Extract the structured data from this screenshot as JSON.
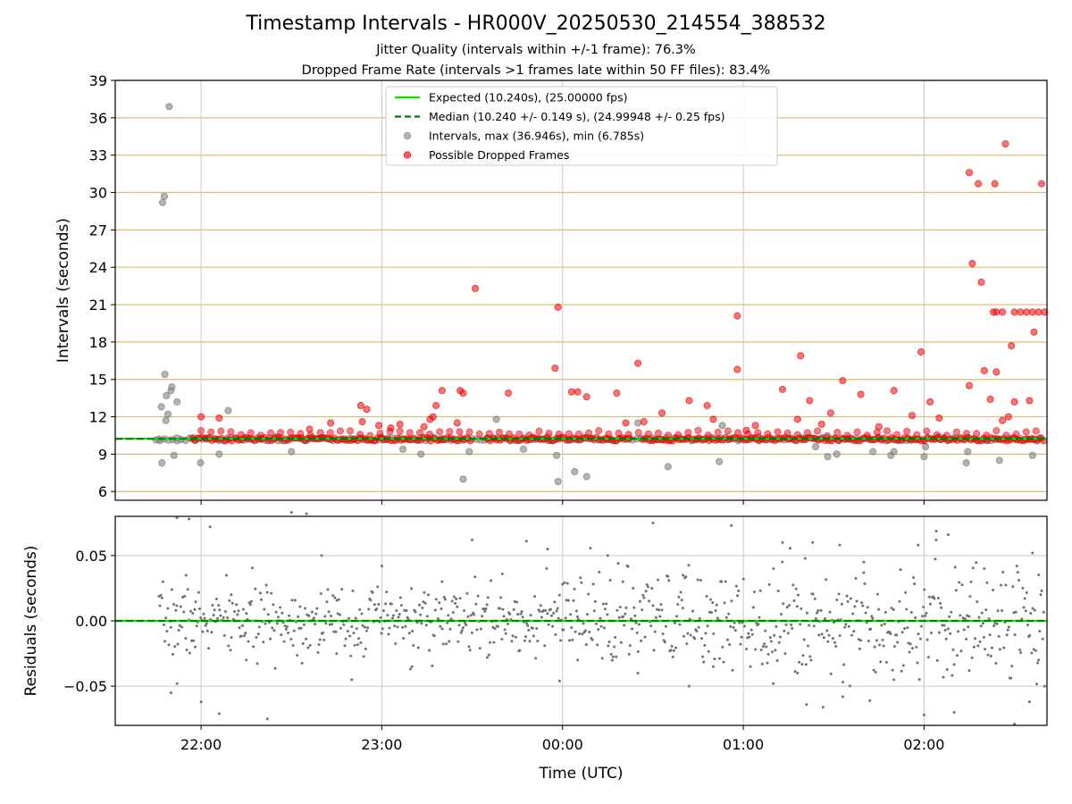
{
  "chart_data": [
    {
      "type": "scatter",
      "title": "Timestamp Intervals - HR000V_20250530_214554_388532",
      "subtitle_lines": [
        "Jitter Quality (intervals within +/-1 frame): 76.3%",
        "Dropped Frame Rate (intervals >1 frames late within 50 FF files): 83.4%"
      ],
      "xlabel": "",
      "ylabel": "Intervals (seconds)",
      "x_unit": "minutes since 21:00 UTC",
      "xlim": [
        31.5,
        340.8
      ],
      "ylim": [
        5.3,
        39
      ],
      "yticks": [
        6,
        9,
        12,
        15,
        18,
        21,
        24,
        27,
        30,
        33,
        36,
        39
      ],
      "ytick_labels": [
        "6",
        "9",
        "12",
        "15",
        "18",
        "21",
        "24",
        "27",
        "30",
        "33",
        "36",
        "39"
      ],
      "xticks": [
        60,
        120,
        180,
        240,
        300
      ],
      "grid": {
        "x": true,
        "y": true,
        "y_grid_color": "#d8bf6a",
        "x_grid_color": "#c8c8c8"
      },
      "legend": {
        "placement": "upper-center",
        "entries": [
          {
            "label": "Expected (10.240s), (25.00000 fps)",
            "kind": "line",
            "color": "#00e600"
          },
          {
            "label": "Median (10.240 +/- 0.149 s), (24.99948 +/- 0.25 fps)",
            "kind": "dashed",
            "color": "#007a00"
          },
          {
            "label": "Intervals, max (36.946s), min (6.785s)",
            "kind": "marker",
            "color": "#909090"
          },
          {
            "label": "Possible Dropped Frames",
            "kind": "marker",
            "color": "#ff2020"
          }
        ]
      },
      "reference_lines": {
        "expected": 10.24,
        "median": 10.24
      },
      "series": [
        {
          "name": "Intervals",
          "color": "#909090",
          "points": [
            [
              47.2,
              29.2
            ],
            [
              47.8,
              29.7
            ],
            [
              49.4,
              36.9
            ],
            [
              48.0,
              15.4
            ],
            [
              50.0,
              14.1
            ],
            [
              50.3,
              14.4
            ],
            [
              46.8,
              12.8
            ],
            [
              48.3,
              11.7
            ],
            [
              49.0,
              12.2
            ],
            [
              52.0,
              13.2
            ],
            [
              48.5,
              13.7
            ],
            [
              47.0,
              8.3
            ],
            [
              51.0,
              8.9
            ],
            [
              59.8,
              8.3
            ],
            [
              66.0,
              9.0
            ],
            [
              69.0,
              12.5
            ],
            [
              90.0,
              9.2
            ],
            [
              127.0,
              9.4
            ],
            [
              133.0,
              9.0
            ],
            [
              147.0,
              7.0
            ],
            [
              149.0,
              9.2
            ],
            [
              158.0,
              11.8
            ],
            [
              167.0,
              9.4
            ],
            [
              178.0,
              8.9
            ],
            [
              178.5,
              6.8
            ],
            [
              184.0,
              7.6
            ],
            [
              188.0,
              7.2
            ],
            [
              205.0,
              11.5
            ],
            [
              215.0,
              8.0
            ],
            [
              232.0,
              8.4
            ],
            [
              233.0,
              11.3
            ],
            [
              264.0,
              9.6
            ],
            [
              268.0,
              8.8
            ],
            [
              271.0,
              9.0
            ],
            [
              283.0,
              9.2
            ],
            [
              289.0,
              8.9
            ],
            [
              290.0,
              9.2
            ],
            [
              300.0,
              8.8
            ],
            [
              300.5,
              9.6
            ],
            [
              314.0,
              8.3
            ],
            [
              314.5,
              9.2
            ],
            [
              325.0,
              8.5
            ],
            [
              336.0,
              8.9
            ],
            [
              46.0,
              10.2
            ],
            [
              52.0,
              10.3
            ],
            [
              58.0,
              10.1
            ],
            [
              62.0,
              10.2
            ],
            [
              75.0,
              10.3
            ],
            [
              80.0,
              10.2
            ],
            [
              85.0,
              10.4
            ],
            [
              95.0,
              10.1
            ],
            [
              100.0,
              10.3
            ],
            [
              110.0,
              10.2
            ],
            [
              120.0,
              10.3
            ],
            [
              140.0,
              10.2
            ],
            [
              155.0,
              10.3
            ],
            [
              170.0,
              10.2
            ],
            [
              175.0,
              10.4
            ],
            [
              195.0,
              10.2
            ],
            [
              210.0,
              10.3
            ],
            [
              225.0,
              10.2
            ],
            [
              245.0,
              10.4
            ],
            [
              255.0,
              10.2
            ],
            [
              260.0,
              10.3
            ],
            [
              275.0,
              10.2
            ],
            [
              285.0,
              10.3
            ],
            [
              295.0,
              10.2
            ],
            [
              305.0,
              10.4
            ],
            [
              320.0,
              10.2
            ],
            [
              330.0,
              10.3
            ],
            [
              338.0,
              10.2
            ]
          ]
        },
        {
          "name": "Possible Dropped Frames",
          "color": "#ff2020",
          "points": [
            [
              60.0,
              12.0
            ],
            [
              66.0,
              11.9
            ],
            [
              96.0,
              11.0
            ],
            [
              103.0,
              11.5
            ],
            [
              113.0,
              12.9
            ],
            [
              115.0,
              12.6
            ],
            [
              113.5,
              11.6
            ],
            [
              119.0,
              11.3
            ],
            [
              123.0,
              11.1
            ],
            [
              126.0,
              11.4
            ],
            [
              134.0,
              11.2
            ],
            [
              136.0,
              11.8
            ],
            [
              137.0,
              12.0
            ],
            [
              138.0,
              12.9
            ],
            [
              140.0,
              14.1
            ],
            [
              151.0,
              22.3
            ],
            [
              146.0,
              14.1
            ],
            [
              147.0,
              13.9
            ],
            [
              145.0,
              11.5
            ],
            [
              162.0,
              13.9
            ],
            [
              178.5,
              20.8
            ],
            [
              177.5,
              15.9
            ],
            [
              183.0,
              14.0
            ],
            [
              185.0,
              14.0
            ],
            [
              188.0,
              13.6
            ],
            [
              198.0,
              13.9
            ],
            [
              201.0,
              11.5
            ],
            [
              205.0,
              16.3
            ],
            [
              207.0,
              11.6
            ],
            [
              213.0,
              12.3
            ],
            [
              222.0,
              13.3
            ],
            [
              228.0,
              12.9
            ],
            [
              230.0,
              11.8
            ],
            [
              238.0,
              20.1
            ],
            [
              238.0,
              15.8
            ],
            [
              241.0,
              10.9
            ],
            [
              244.0,
              11.3
            ],
            [
              253.0,
              14.2
            ],
            [
              258.0,
              11.8
            ],
            [
              259.0,
              16.9
            ],
            [
              262.0,
              13.3
            ],
            [
              266.0,
              11.4
            ],
            [
              269.0,
              12.3
            ],
            [
              273.0,
              14.9
            ],
            [
              279.0,
              13.8
            ],
            [
              285.0,
              11.2
            ],
            [
              290.0,
              14.1
            ],
            [
              296.0,
              12.1
            ],
            [
              299.0,
              17.2
            ],
            [
              302.0,
              13.2
            ],
            [
              305.0,
              11.9
            ],
            [
              315.0,
              31.6
            ],
            [
              318.0,
              30.7
            ],
            [
              323.0,
              20.4
            ],
            [
              324.0,
              20.4
            ],
            [
              326.0,
              20.4
            ],
            [
              330.0,
              20.4
            ],
            [
              332.0,
              20.4
            ],
            [
              334.0,
              20.4
            ],
            [
              336.0,
              20.4
            ],
            [
              338.0,
              20.4
            ],
            [
              340.0,
              20.4
            ],
            [
              319.0,
              22.8
            ],
            [
              316.0,
              24.3
            ],
            [
              327.0,
              33.9
            ],
            [
              323.5,
              30.7
            ],
            [
              339.0,
              30.7
            ],
            [
              336.5,
              18.8
            ],
            [
              329.0,
              17.7
            ],
            [
              320.0,
              15.7
            ],
            [
              324.0,
              15.6
            ],
            [
              330.0,
              13.2
            ],
            [
              335.0,
              13.3
            ],
            [
              315.0,
              14.5
            ],
            [
              322.0,
              13.4
            ],
            [
              326.0,
              11.7
            ],
            [
              328.0,
              12.0
            ]
          ]
        }
      ]
    },
    {
      "type": "scatter",
      "title": "",
      "xlabel": "Time (UTC)",
      "ylabel": "Residuals (seconds)",
      "x_unit": "minutes since 21:00 UTC",
      "xlim": [
        31.5,
        340.8
      ],
      "ylim": [
        -0.08,
        0.08
      ],
      "yticks": [
        -0.05,
        0.0,
        0.05
      ],
      "ytick_labels": [
        "−0.05",
        "0.00",
        "0.05"
      ],
      "xticks": [
        60,
        120,
        180,
        240,
        300
      ],
      "xtick_labels": [
        "22:00",
        "23:00",
        "00:00",
        "01:00",
        "02:00"
      ],
      "grid": {
        "x": true,
        "y": true
      },
      "reference_lines": {
        "zero": 0.0,
        "color": "#00e600"
      },
      "series": [
        {
          "name": "Residuals",
          "color": "#707070",
          "points": [
            [
              52.0,
              0.079
            ],
            [
              56.0,
              0.078
            ],
            [
              63.0,
              0.072
            ],
            [
              90.0,
              0.083
            ],
            [
              95.0,
              0.082
            ],
            [
              168.0,
              0.061
            ],
            [
              150.0,
              0.062
            ],
            [
              210.0,
              0.075
            ],
            [
              236.0,
              0.073
            ],
            [
              175.0,
              0.055
            ],
            [
              195.0,
              0.05
            ],
            [
              253.0,
              0.06
            ],
            [
              263.0,
              0.06
            ],
            [
              272.0,
              0.058
            ],
            [
              298.0,
              0.058
            ],
            [
              304.0,
              0.062
            ],
            [
              308.0,
              0.066
            ],
            [
              336.0,
              0.052
            ],
            [
              66.0,
              -0.071
            ],
            [
              82.0,
              -0.075
            ],
            [
              50.0,
              -0.055
            ],
            [
              52.0,
              -0.048
            ],
            [
              60.0,
              -0.062
            ],
            [
              110.0,
              -0.045
            ],
            [
              179.0,
              -0.046
            ],
            [
              222.0,
              -0.05
            ],
            [
              261.0,
              -0.064
            ],
            [
              273.0,
              -0.058
            ],
            [
              282.0,
              -0.061
            ],
            [
              300.0,
              -0.072
            ],
            [
              310.0,
              -0.07
            ],
            [
              330.0,
              -0.079
            ],
            [
              335.0,
              -0.062
            ],
            [
              340.0,
              -0.05
            ],
            [
              55.0,
              0.035
            ],
            [
              70.0,
              0.02
            ],
            [
              100.0,
              0.05
            ],
            [
              120.0,
              0.042
            ],
            [
              140.0,
              0.03
            ],
            [
              160.0,
              0.036
            ],
            [
              180.0,
              0.028
            ],
            [
              200.0,
              0.03
            ],
            [
              220.0,
              0.035
            ],
            [
              250.0,
              0.04
            ],
            [
              280.0,
              0.045
            ],
            [
              320.0,
              0.04
            ],
            [
              58.0,
              -0.02
            ],
            [
              75.0,
              -0.03
            ],
            [
              105.0,
              -0.025
            ],
            [
              130.0,
              -0.035
            ],
            [
              155.0,
              -0.028
            ],
            [
              185.0,
              -0.03
            ],
            [
              205.0,
              -0.04
            ],
            [
              230.0,
              -0.035
            ],
            [
              258.0,
              -0.04
            ],
            [
              290.0,
              -0.045
            ],
            [
              315.0,
              -0.038
            ],
            [
              338.0,
              -0.03
            ]
          ]
        }
      ]
    }
  ]
}
